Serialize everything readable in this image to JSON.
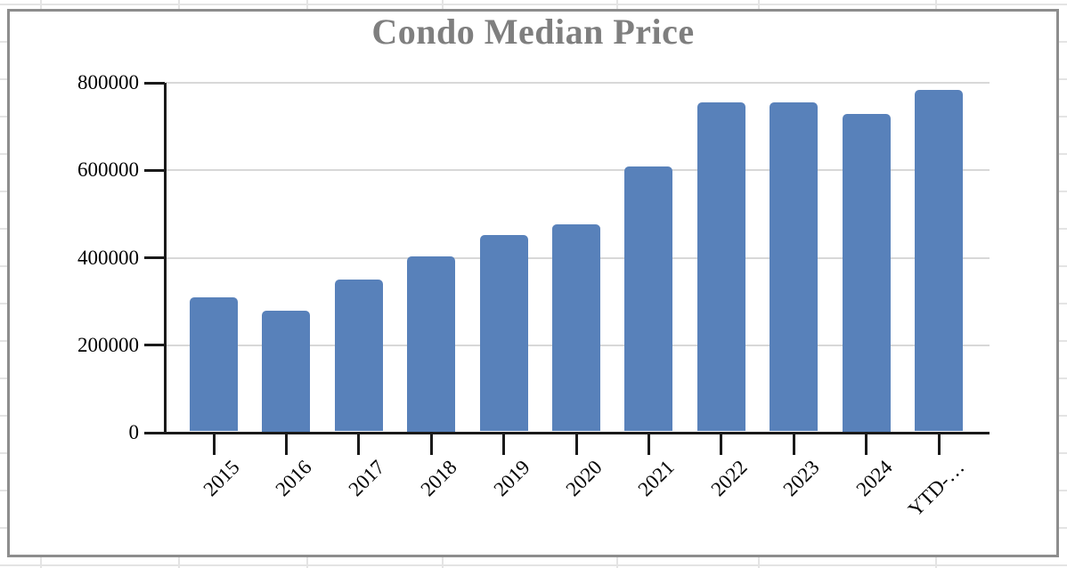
{
  "chart_data": {
    "type": "bar",
    "title": "Condo Median Price",
    "categories": [
      "2015",
      "2016",
      "2017",
      "2018",
      "2019",
      "2020",
      "2021",
      "2022",
      "2023",
      "2024",
      "YTD-…"
    ],
    "values": [
      306000,
      275000,
      348000,
      400000,
      449000,
      473000,
      605000,
      752000,
      752000,
      725000,
      781000
    ],
    "ylim": [
      0,
      800000
    ],
    "yticks": [
      0,
      200000,
      400000,
      600000,
      800000
    ],
    "ytick_labels": [
      "0",
      "200000",
      "400000",
      "600000",
      "800000"
    ],
    "xlabel": "",
    "ylabel": "",
    "grid": true,
    "legend_position": "none",
    "x_label_rotation_deg": -45,
    "bar_color": "#5881BA",
    "title_color": "#7F7F7F",
    "axis_color": "#1A1A1A",
    "gridline_color": "#D8D8D8"
  },
  "container": {
    "kind": "spreadsheet-embedded-chart",
    "chart_border_color": "#8D8D8D",
    "sheet_gridline_color": "#E4E4E4"
  }
}
